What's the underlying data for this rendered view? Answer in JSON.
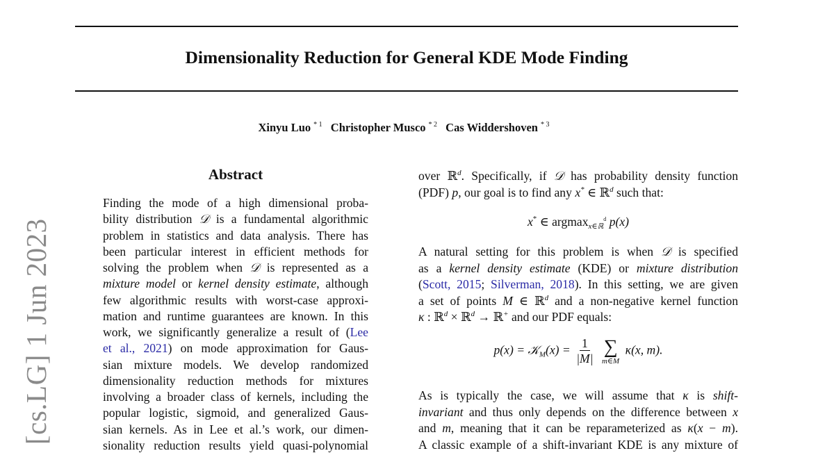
{
  "paper": {
    "title": "Dimensionality Reduction for General KDE Mode Finding",
    "authors": [
      {
        "name": "Xinyu Luo",
        "mark": "* 1"
      },
      {
        "name": "Christopher Musco",
        "mark": "* 2"
      },
      {
        "name": "Cas Widdershoven",
        "mark": "* 3"
      }
    ],
    "arxiv_stamp": "[cs.LG]  1 Jun 2023",
    "abstract_heading": "Abstract",
    "link_color": "#2b2ba6"
  },
  "abstract_lines": [
    [
      [
        "Finding the mode of a high dimensional proba-",
        ""
      ]
    ],
    [
      [
        "bility distribution ",
        ""
      ],
      [
        "𝒟",
        "m"
      ],
      [
        " is a fundamental algorithmic",
        ""
      ]
    ],
    [
      [
        "problem in statistics and data analysis. There has",
        ""
      ]
    ],
    [
      [
        "been particular interest in efficient methods for",
        ""
      ]
    ],
    [
      [
        "solving the problem when ",
        ""
      ],
      [
        "𝒟",
        "m"
      ],
      [
        " is represented as a",
        ""
      ]
    ],
    [
      [
        "mixture model",
        "i"
      ],
      [
        " or ",
        ""
      ],
      [
        "kernel density estimate",
        "i"
      ],
      [
        ", although",
        ""
      ]
    ],
    [
      [
        "few algorithmic results with worst-case approxi-",
        ""
      ]
    ],
    [
      [
        "mation and runtime guarantees are known. In this",
        ""
      ]
    ],
    [
      [
        "work, we significantly generalize a result of (",
        ""
      ],
      [
        "Lee",
        "l"
      ]
    ],
    [
      [
        "et al., 2021",
        "l"
      ],
      [
        ") on mode approximation for Gaus-",
        ""
      ]
    ],
    [
      [
        "sian mixture models.  We develop randomized",
        ""
      ]
    ],
    [
      [
        "dimensionality reduction methods for mixtures",
        ""
      ]
    ],
    [
      [
        "involving a broader class of kernels, including the",
        ""
      ]
    ],
    [
      [
        "popular logistic, sigmoid, and generalized Gaus-",
        ""
      ]
    ],
    [
      [
        "sian kernels. As in Lee et al.’s work, our dimen-",
        ""
      ]
    ],
    [
      [
        "sionality reduction results yield quasi-polynomial",
        ""
      ]
    ]
  ],
  "right_lines_a": [
    [
      [
        "over ℝ",
        ""
      ],
      [
        "d",
        "sup"
      ],
      [
        ". Specifically, if ",
        ""
      ],
      [
        "𝒟",
        "m"
      ],
      [
        " has probability density function",
        ""
      ]
    ],
    [
      [
        "(PDF) ",
        ""
      ],
      [
        "p",
        "m"
      ],
      [
        ", our goal is to find any ",
        ""
      ],
      [
        "x",
        "m"
      ],
      [
        "*",
        "sup"
      ],
      [
        " ∈ ℝ",
        ""
      ],
      [
        "d",
        "sup"
      ],
      [
        " such that:",
        ""
      ]
    ]
  ],
  "equation_1": {
    "lhs": "x",
    "star": "*",
    "op": " ∈ argmax",
    "sub": "x∈ℝ",
    "subsup": "d",
    "rhs": " p(x)"
  },
  "right_lines_b": [
    [
      [
        "A natural setting for this problem is when ",
        ""
      ],
      [
        "𝒟",
        "m"
      ],
      [
        " is specified",
        ""
      ]
    ],
    [
      [
        "as a ",
        ""
      ],
      [
        "kernel density estimate",
        "i"
      ],
      [
        " (KDE) or ",
        ""
      ],
      [
        "mixture distribution",
        "i"
      ]
    ],
    [
      [
        "(",
        ""
      ],
      [
        "Scott, 2015",
        "l"
      ],
      [
        "; ",
        ""
      ],
      [
        "Silverman, 2018",
        "l"
      ],
      [
        "). In this setting, we are given",
        ""
      ]
    ],
    [
      [
        "a set of points ",
        ""
      ],
      [
        "M",
        "m"
      ],
      [
        " ∈ ℝ",
        ""
      ],
      [
        "d",
        "sup"
      ],
      [
        " and a non-negative kernel function",
        ""
      ]
    ],
    [
      [
        "κ",
        "m"
      ],
      [
        " : ℝ",
        ""
      ],
      [
        "d",
        "sup"
      ],
      [
        " × ℝ",
        ""
      ],
      [
        "d",
        "sup"
      ],
      [
        " → ℝ",
        ""
      ],
      [
        "+",
        "sup"
      ],
      [
        " and our PDF equals:",
        ""
      ]
    ]
  ],
  "equation_2": {
    "lhs": "p(x) = 𝒦",
    "sub": "M",
    "mid": "(x) =",
    "num": "1",
    "den": "|M|",
    "sum": "∑",
    "sum_lim": "m∈M",
    "rhs": "κ(x, m)."
  },
  "right_lines_c": [
    [
      [
        "As is typically the case, we will assume that ",
        ""
      ],
      [
        "κ",
        "m"
      ],
      [
        " is ",
        ""
      ],
      [
        "shift-",
        "i"
      ]
    ],
    [
      [
        "invariant",
        "i"
      ],
      [
        " and thus only depends on the difference between ",
        ""
      ],
      [
        "x",
        "m"
      ]
    ],
    [
      [
        "and ",
        ""
      ],
      [
        "m",
        "m"
      ],
      [
        ", meaning that it can be reparameterized as ",
        ""
      ],
      [
        "κ",
        "m"
      ],
      [
        "(",
        ""
      ],
      [
        "x",
        "m"
      ],
      [
        " − ",
        ""
      ],
      [
        "m",
        "m"
      ],
      [
        ").",
        ""
      ]
    ],
    [
      [
        "A classic example of a shift-invariant KDE is any mixture of",
        ""
      ]
    ]
  ]
}
